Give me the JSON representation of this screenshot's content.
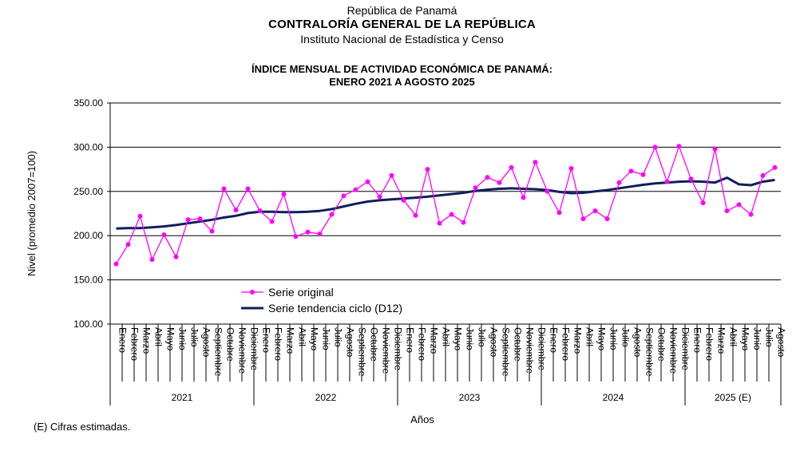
{
  "header": {
    "line1": "República de Panamá",
    "line2": "CONTRALORÍA  GENERAL DE LA REPÚBLICA",
    "line3": "Instituto Nacional de Estadística y Censo"
  },
  "footnote": "(E) Cifras estimadas.",
  "colors": {
    "original": "#ff00ff",
    "trend": "#0d1f5c",
    "grid": "#000000"
  },
  "chart_data": {
    "type": "line",
    "title": "ÍNDICE MENSUAL DE ACTIVIDAD ECONÓMICA DE PANAMÁ:",
    "subtitle": "ENERO 2021 A AGOSTO 2025",
    "ylabel": "Nivel (promedio 2007=100)",
    "xlabel": "Años",
    "ylim": [
      100,
      350
    ],
    "yticks": [
      "100.00",
      "150.00",
      "200.00",
      "250.00",
      "300.00",
      "350.00"
    ],
    "grid": true,
    "legend_position": "upper-left",
    "years": [
      {
        "label": "2021",
        "months": 12
      },
      {
        "label": "2022",
        "months": 12
      },
      {
        "label": "2023",
        "months": 12
      },
      {
        "label": "2024",
        "months": 12
      },
      {
        "label": "2025 (E)",
        "months": 8
      }
    ],
    "categories": [
      "Enero",
      "Febrero",
      "Marzo",
      "Abril",
      "Mayo",
      "Junio",
      "Julio",
      "Agosto",
      "Septiembre",
      "Octubre",
      "Noviembre",
      "Diciembre",
      "Enero",
      "Febrero",
      "Marzo",
      "Abril",
      "Mayo",
      "Junio",
      "Julio",
      "Agosto",
      "Septiembre",
      "Octubre",
      "Noviembre",
      "Diciembre",
      "Enero",
      "Febrero",
      "Marzo",
      "Abril",
      "Mayo",
      "Junio",
      "Julio",
      "Agosto",
      "Septiembre",
      "Octubre",
      "Noviembre",
      "Diciembre",
      "Enero",
      "Febrero",
      "Marzo",
      "Abril",
      "Mayo",
      "Junio",
      "Julio",
      "Agosto",
      "Septiembre",
      "Octubre",
      "Noviembre",
      "Diciembre",
      "Enero",
      "Febrero",
      "Marzo",
      "Abril",
      "Mayo",
      "Junio",
      "Julio",
      "Agosto"
    ],
    "series": [
      {
        "name": "Serie original",
        "values": [
          168,
          190,
          222,
          173,
          201,
          176,
          218,
          219,
          205,
          253,
          229,
          253,
          228,
          216,
          247,
          199,
          204,
          202,
          224,
          245,
          252,
          261,
          244,
          268,
          240,
          223,
          275,
          214,
          224,
          215,
          254,
          266,
          260,
          277,
          243,
          283,
          250,
          226,
          276,
          219,
          228,
          219,
          260,
          273,
          269,
          300,
          261,
          301,
          264,
          237,
          298,
          228,
          235,
          224,
          268,
          277
        ]
      },
      {
        "name": "Serie tendencia ciclo (D12)",
        "values": [
          208,
          208.5,
          208.5,
          209.5,
          210.5,
          212,
          214,
          216,
          218,
          220.5,
          222.5,
          225.5,
          227,
          227,
          226.5,
          226.5,
          227,
          228,
          230,
          233,
          236,
          238.5,
          240,
          241,
          242,
          243,
          244,
          245.5,
          247,
          248.5,
          250.5,
          252,
          253,
          253.5,
          253,
          252.5,
          251.5,
          249.5,
          248,
          248.5,
          250,
          251.5,
          253.5,
          255.5,
          257.5,
          259,
          260,
          261,
          261.5,
          261,
          260,
          265.5,
          258,
          257,
          261,
          263
        ]
      }
    ]
  }
}
